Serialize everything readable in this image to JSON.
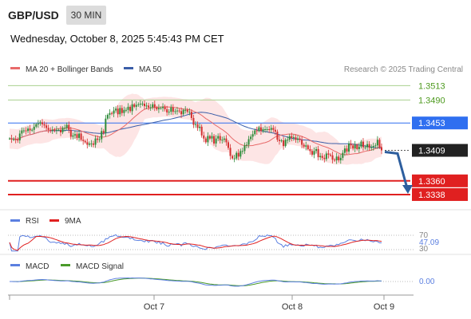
{
  "header": {
    "pair": "GBP/USD",
    "timeframe": "30 MIN",
    "datetime": "Wednesday, October 8, 2025 5:45:43 PM CET"
  },
  "legend": {
    "ma20": "MA 20 + Bollinger Bands",
    "ma50": "MA 50",
    "credit": "Research © 2025 Trading Central"
  },
  "colors": {
    "ma20": "#e86a6a",
    "ma50": "#3b5ea8",
    "band": "#fcdede",
    "bull": "#2e8b3a",
    "bear": "#d32f2f",
    "resistance": "#a9d08e",
    "pivot": "#2f6ff0",
    "support": "#e02020",
    "arrow": "#2d5e9e",
    "rsi": "#5b7fe0",
    "rsi_ma": "#e02020",
    "macd": "#5b7fe0",
    "macd_signal": "#4a9a2a"
  },
  "chart_data": [
    {
      "type": "candlestick",
      "title": "GBP/USD",
      "x_ticks": [
        "Oct 7",
        "Oct 8",
        "Oct 9"
      ],
      "ylim": [
        1.332,
        1.3525
      ],
      "levels": [
        {
          "label": "1.3513",
          "value": 1.3513,
          "kind": "resistance"
        },
        {
          "label": "1.3490",
          "value": 1.349,
          "kind": "resistance"
        },
        {
          "label": "1.3453",
          "value": 1.3453,
          "kind": "pivot"
        },
        {
          "label": "1.3409",
          "value": 1.3409,
          "kind": "last"
        },
        {
          "label": "1.3360",
          "value": 1.336,
          "kind": "support"
        },
        {
          "label": "1.3338",
          "value": 1.3338,
          "kind": "support"
        }
      ],
      "closes": [
        1.3428,
        1.3427,
        1.3427,
        1.3426,
        1.3425,
        1.3436,
        1.3441,
        1.3441,
        1.344,
        1.3444,
        1.3441,
        1.3442,
        1.3447,
        1.3451,
        1.3452,
        1.3454,
        1.3451,
        1.3449,
        1.3445,
        1.3442,
        1.3441,
        1.3442,
        1.3441,
        1.3442,
        1.3442,
        1.3438,
        1.3445,
        1.3445,
        1.345,
        1.3442,
        1.3431,
        1.3433,
        1.3435,
        1.3429,
        1.3436,
        1.3426,
        1.3424,
        1.3422,
        1.3418,
        1.342,
        1.342,
        1.3418,
        1.3428,
        1.3426,
        1.3427,
        1.344,
        1.3437,
        1.346,
        1.3466,
        1.3469,
        1.3468,
        1.3473,
        1.3476,
        1.3467,
        1.3477,
        1.3469,
        1.3474,
        1.3474,
        1.3479,
        1.3472,
        1.3483,
        1.3479,
        1.3482,
        1.3483,
        1.3484,
        1.3484,
        1.348,
        1.3481,
        1.3478,
        1.3478,
        1.3483,
        1.3478,
        1.3475,
        1.3477,
        1.3477,
        1.3479,
        1.3475,
        1.347,
        1.3471,
        1.3478,
        1.3471,
        1.3472,
        1.3473,
        1.3472,
        1.3467,
        1.3474,
        1.3474,
        1.3471,
        1.3471,
        1.3461,
        1.345,
        1.3451,
        1.3445,
        1.3447,
        1.3433,
        1.3428,
        1.3422,
        1.3432,
        1.3428,
        1.3432,
        1.342,
        1.3428,
        1.3432,
        1.3425,
        1.3426,
        1.3428,
        1.3422,
        1.3413,
        1.34,
        1.3396,
        1.3396,
        1.3405,
        1.3399,
        1.3408,
        1.3408,
        1.3417,
        1.3418,
        1.3427,
        1.3431,
        1.3435,
        1.3441,
        1.344,
        1.3446,
        1.344,
        1.3443,
        1.3443,
        1.3443,
        1.3442,
        1.3445,
        1.3442,
        1.3439,
        1.3426,
        1.3424,
        1.3425,
        1.3416,
        1.3426,
        1.3426,
        1.3432,
        1.3429,
        1.343,
        1.3426,
        1.3428,
        1.3426,
        1.3418,
        1.3415,
        1.3417,
        1.3411,
        1.3408,
        1.3402,
        1.3408,
        1.3411,
        1.3398,
        1.34,
        1.3397,
        1.3395,
        1.3404,
        1.3402,
        1.3401,
        1.3394,
        1.3393,
        1.3399,
        1.3393,
        1.3397,
        1.3405,
        1.3412,
        1.3407,
        1.342,
        1.3417,
        1.3412,
        1.3418,
        1.3411,
        1.3415,
        1.3423,
        1.3414,
        1.3414,
        1.3419,
        1.3413,
        1.3414,
        1.3416,
        1.3417,
        1.3426,
        1.3414,
        1.3409
      ]
    },
    {
      "type": "line",
      "series": [
        {
          "name": "RSI"
        },
        {
          "name": "9MA"
        }
      ],
      "ylim": [
        30,
        70
      ],
      "y_ticks": [
        "70",
        "30"
      ],
      "last_value": "47.09"
    },
    {
      "type": "line",
      "series": [
        {
          "name": "MACD"
        },
        {
          "name": "MACD Signal"
        }
      ],
      "last_value": "0.00"
    }
  ]
}
